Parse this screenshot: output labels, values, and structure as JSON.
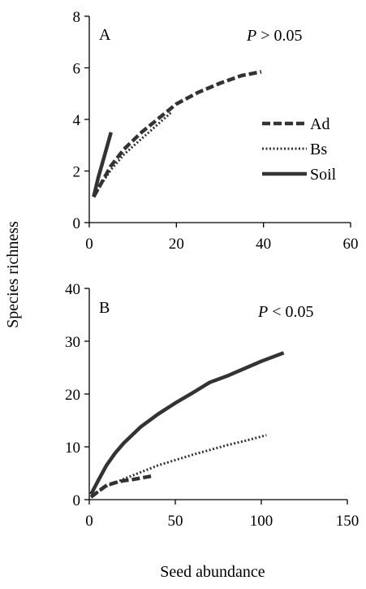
{
  "figure": {
    "ylabel": "Species richness",
    "xlabel": "Seed abundance"
  },
  "legend": [
    {
      "name": "Ad",
      "style": "dashed"
    },
    {
      "name": "Bs",
      "style": "dotted"
    },
    {
      "name": "Soil",
      "style": "solid"
    }
  ],
  "colors": {
    "line": "#333333",
    "axis": "#000000"
  },
  "chart_data": [
    {
      "type": "line",
      "panel_label": "A",
      "annotation": {
        "italic": "P",
        "rest": " > 0.05"
      },
      "xlim": [
        0,
        60
      ],
      "ylim": [
        0,
        8
      ],
      "xticks": [
        0,
        20,
        40,
        60
      ],
      "yticks": [
        0,
        2,
        4,
        6,
        8
      ],
      "grid": false,
      "legend_position": "right",
      "series": [
        {
          "name": "Ad",
          "style": "dashed",
          "x": [
            1,
            3,
            5,
            8,
            12,
            16,
            20,
            25,
            30,
            35,
            39.5
          ],
          "y": [
            1.0,
            1.6,
            2.2,
            2.85,
            3.5,
            4.05,
            4.6,
            5.05,
            5.4,
            5.7,
            5.85
          ]
        },
        {
          "name": "Bs",
          "style": "dotted",
          "x": [
            1,
            3,
            5,
            8,
            12,
            16,
            19
          ],
          "y": [
            1.0,
            1.55,
            2.05,
            2.65,
            3.25,
            3.85,
            4.3
          ]
        },
        {
          "name": "Soil",
          "style": "solid",
          "x": [
            1,
            2,
            3,
            4,
            5
          ],
          "y": [
            1.0,
            1.7,
            2.3,
            2.9,
            3.5
          ]
        }
      ]
    },
    {
      "type": "line",
      "panel_label": "B",
      "annotation": {
        "italic": "P",
        "rest": " < 0.05"
      },
      "xlim": [
        0,
        150
      ],
      "ylim": [
        0,
        40
      ],
      "xticks": [
        0,
        50,
        100,
        150
      ],
      "yticks": [
        0,
        10,
        20,
        30,
        40
      ],
      "grid": false,
      "series": [
        {
          "name": "Ad",
          "style": "dashed",
          "x": [
            1,
            5,
            10,
            15,
            20,
            25,
            30,
            37
          ],
          "y": [
            0.5,
            1.5,
            2.7,
            3.2,
            3.6,
            3.8,
            4.1,
            4.5
          ]
        },
        {
          "name": "Bs",
          "style": "dotted",
          "x": [
            1,
            5,
            10,
            20,
            30,
            40,
            50,
            60,
            70,
            80,
            90,
            103
          ],
          "y": [
            0.5,
            1.5,
            2.5,
            3.9,
            5.2,
            6.5,
            7.5,
            8.5,
            9.4,
            10.3,
            11.1,
            12.2
          ]
        },
        {
          "name": "Soil",
          "style": "solid",
          "x": [
            1,
            5,
            10,
            15,
            20,
            30,
            40,
            50,
            60,
            70,
            80,
            90,
            100,
            113
          ],
          "y": [
            1.0,
            3.5,
            6.5,
            8.8,
            10.7,
            13.8,
            16.2,
            18.3,
            20.2,
            22.2,
            23.4,
            24.8,
            26.2,
            27.8
          ]
        }
      ]
    }
  ]
}
